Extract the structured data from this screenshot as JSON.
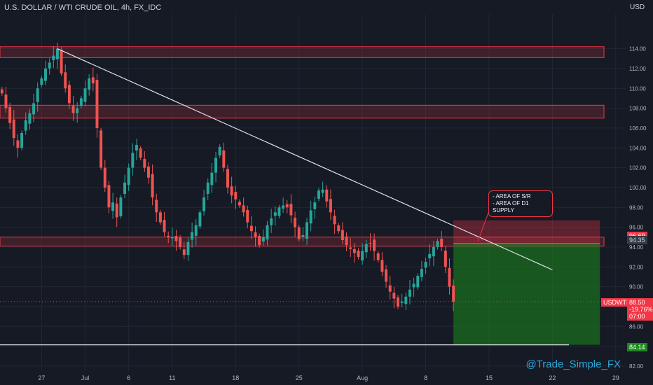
{
  "header": {
    "title": "U.S. DOLLAR / WTI CRUDE OIL, 4h, FX_IDC",
    "currency": "USD"
  },
  "watermark": "@Trade_Simple_FX",
  "annotation": {
    "line1": "- AREA OF S/R",
    "line2": "- AREA OF D1 SUPPLY"
  },
  "price_tags": {
    "stop": "96.69",
    "entry": "94.35",
    "symbol": "USDWTI",
    "last": "88.50",
    "change": "-19.76%",
    "countdown": "07:00",
    "target": "84.14"
  },
  "colors": {
    "background": "#161a25",
    "bull": "#26a69a",
    "bear": "#ef5350",
    "zone": "#f23645",
    "profit": "#1b8a1b",
    "text": "#b2b5be",
    "trendline": "#e0e3eb"
  },
  "chart_data": {
    "type": "candlestick",
    "symbol": "USDWTI",
    "timeframe": "4h",
    "ylim": [
      81.5,
      117.5
    ],
    "y_ticks": [
      "82.00",
      "84.00",
      "86.00",
      "88.00",
      "90.00",
      "92.00",
      "94.00",
      "96.00",
      "98.00",
      "100.00",
      "102.00",
      "104.00",
      "106.00",
      "108.00",
      "110.00",
      "112.00",
      "114.00"
    ],
    "x_ticks": [
      {
        "label": "27",
        "i": 10
      },
      {
        "label": "Jul",
        "i": 21
      },
      {
        "label": "6",
        "i": 32
      },
      {
        "label": "11",
        "i": 43
      },
      {
        "label": "18",
        "i": 59
      },
      {
        "label": "25",
        "i": 75
      },
      {
        "label": "Aug",
        "i": 91
      },
      {
        "label": "8",
        "i": 107
      },
      {
        "label": "15",
        "i": 123
      },
      {
        "label": "22",
        "i": 139
      },
      {
        "label": "29",
        "i": 155
      }
    ],
    "bars_total": 158,
    "closes": [
      109.5,
      108.0,
      106.5,
      105.0,
      104.0,
      105.5,
      106.8,
      107.5,
      108.5,
      110.0,
      111.0,
      112.0,
      112.6,
      113.3,
      114.0,
      111.5,
      110.0,
      108.5,
      107.5,
      108.0,
      109.0,
      110.0,
      111.0,
      110.5,
      106.0,
      102.0,
      100.0,
      98.0,
      98.5,
      97.0,
      99.0,
      100.5,
      102.0,
      103.5,
      104.3,
      103.0,
      102.0,
      101.0,
      99.0,
      97.5,
      96.5,
      95.5,
      95.0,
      95.0,
      94.6,
      94.0,
      93.2,
      94.5,
      95.5,
      96.2,
      97.5,
      99.0,
      100.5,
      101.5,
      103.0,
      104.1,
      102.0,
      100.0,
      99.2,
      98.8,
      98.2,
      97.5,
      96.5,
      95.6,
      95.0,
      94.2,
      95.0,
      96.2,
      96.9,
      97.5,
      98.0,
      98.2,
      98.0,
      97.2,
      96.0,
      94.8,
      95.2,
      96.5,
      97.7,
      98.5,
      99.7,
      99.8,
      98.6,
      97.5,
      96.3,
      95.6,
      94.7,
      94.2,
      93.8,
      93.4,
      93.0,
      93.6,
      94.3,
      94.4,
      93.6,
      92.7,
      91.5,
      90.5,
      89.5,
      88.8,
      88.0,
      88.5,
      89.0,
      89.7,
      90.3,
      91.1,
      91.8,
      92.5,
      93.3,
      94.0,
      94.6,
      94.0,
      92.0,
      90.0,
      88.5
    ],
    "trendline": [
      {
        "i": 14,
        "price": 114.0
      },
      {
        "i": 139,
        "price": 91.7
      }
    ],
    "horizontal_line": 84.14,
    "zones": [
      {
        "from": 113.1,
        "to": 114.2
      },
      {
        "from": 107.0,
        "to": 108.3
      },
      {
        "from": 94.1,
        "to": 95.0
      }
    ],
    "position": {
      "type": "short",
      "start_i": 114,
      "end_i": 151,
      "entry": 94.35,
      "stop": 96.69,
      "target": 84.14
    },
    "last_price": 88.5
  }
}
